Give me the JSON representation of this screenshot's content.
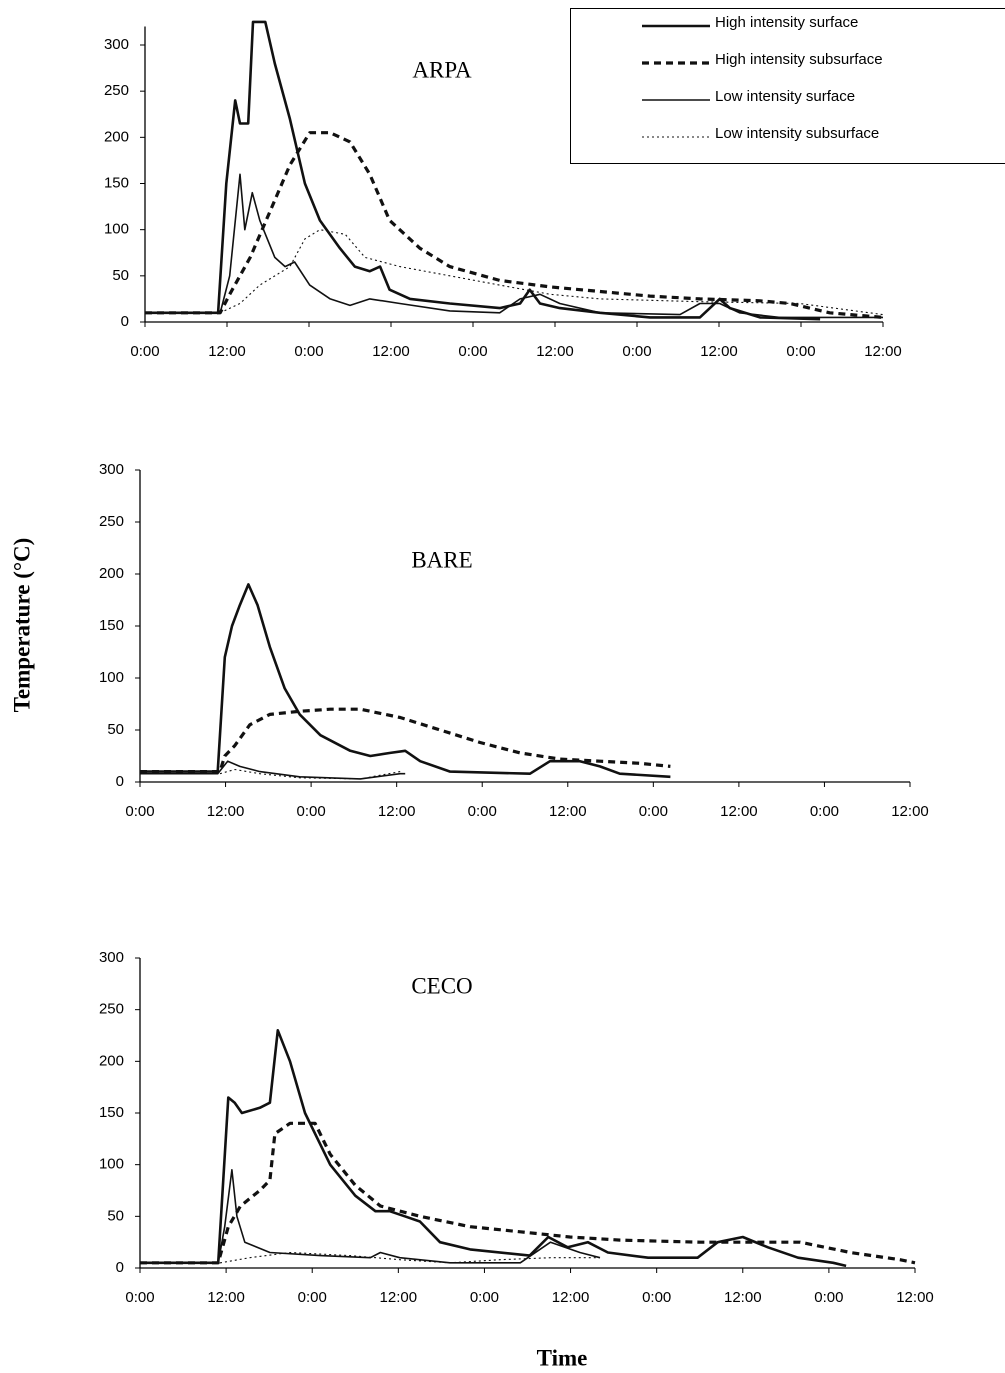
{
  "ylabel": "Temperature (°C)",
  "xlabel": "Time",
  "chart_data": [
    {
      "type": "line",
      "title": "ARPA",
      "legend": "upper right",
      "xlim": [
        0,
        108
      ],
      "ylim": [
        0,
        320
      ],
      "xticks": [
        {
          "value": 0,
          "label": "0:00"
        },
        {
          "value": 12,
          "label": "12:00"
        },
        {
          "value": 24,
          "label": "0:00"
        },
        {
          "value": 36,
          "label": "12:00"
        },
        {
          "value": 48,
          "label": "0:00"
        },
        {
          "value": 60,
          "label": "12:00"
        },
        {
          "value": 72,
          "label": "0:00"
        },
        {
          "value": 84,
          "label": "12:00"
        },
        {
          "value": 96,
          "label": "0:00"
        },
        {
          "value": 108,
          "label": "12:00"
        }
      ],
      "yticks": [
        0,
        50,
        100,
        150,
        200,
        250,
        300
      ],
      "series": [
        {
          "name": "High intensity surface",
          "style": "solid-thick",
          "x": [
            0,
            10.7,
            11.9,
            13.2,
            13.9,
            15.1,
            15.8,
            17.6,
            19.0,
            21.2,
            23.4,
            25.6,
            28.5,
            30.7,
            32.9,
            34.4,
            35.8,
            38.8,
            44.6,
            51.9,
            54.9,
            56.3,
            57.8,
            60.7,
            66.6,
            73.9,
            81.2,
            84.1,
            85.6,
            90.0,
            98.8
          ],
          "values": [
            10,
            10,
            150,
            240,
            215,
            215,
            325,
            325,
            280,
            220,
            150,
            110,
            80,
            60,
            55,
            60,
            35,
            25,
            20,
            15,
            20,
            35,
            20,
            15,
            10,
            5,
            5,
            25,
            15,
            5,
            3
          ]
        },
        {
          "name": "High intensity subsurface",
          "style": "dashed-thick",
          "x": [
            0,
            11.0,
            12.4,
            15.4,
            18.3,
            21.2,
            24.1,
            27.1,
            30.0,
            32.9,
            35.8,
            40.2,
            44.6,
            51.9,
            59.3,
            66.6,
            73.9,
            81.2,
            90.0,
            94.4,
            100.2,
            108
          ],
          "values": [
            10,
            10,
            30,
            70,
            120,
            170,
            205,
            205,
            195,
            160,
            110,
            80,
            60,
            45,
            38,
            33,
            28,
            25,
            23,
            20,
            10,
            5
          ]
        },
        {
          "name": "Low intensity surface",
          "style": "solid-thin",
          "x": [
            0,
            11.0,
            12.4,
            13.9,
            14.6,
            15.7,
            16.8,
            19.0,
            20.5,
            21.9,
            24.1,
            27.1,
            30.0,
            32.9,
            37.3,
            44.6,
            51.9,
            54.9,
            57.8,
            60.7,
            66.6,
            78.3,
            81.2,
            84.1,
            87.0,
            92.9,
            108
          ],
          "values": [
            10,
            10,
            50,
            160,
            100,
            140,
            110,
            70,
            60,
            65,
            40,
            25,
            18,
            25,
            20,
            12,
            10,
            25,
            30,
            20,
            10,
            8,
            20,
            20,
            10,
            5,
            5
          ]
        },
        {
          "name": "Low intensity subsurface",
          "style": "dotted-thin",
          "x": [
            0,
            11.0,
            13.9,
            16.8,
            21.2,
            23.4,
            25.6,
            29.3,
            32.2,
            37.3,
            44.6,
            51.9,
            59.3,
            66.6,
            81.2,
            95.8,
            108
          ],
          "values": [
            10,
            10,
            20,
            40,
            60,
            90,
            100,
            95,
            70,
            60,
            50,
            40,
            30,
            25,
            22,
            20,
            8
          ]
        }
      ]
    },
    {
      "type": "line",
      "title": "BARE",
      "xlim": [
        0,
        108
      ],
      "ylim": [
        0,
        300
      ],
      "xticks": [
        {
          "value": 0,
          "label": "0:00"
        },
        {
          "value": 12,
          "label": "12:00"
        },
        {
          "value": 24,
          "label": "0:00"
        },
        {
          "value": 36,
          "label": "12:00"
        },
        {
          "value": 48,
          "label": "0:00"
        },
        {
          "value": 60,
          "label": "12:00"
        },
        {
          "value": 72,
          "label": "0:00"
        },
        {
          "value": 84,
          "label": "12:00"
        },
        {
          "value": 96,
          "label": "0:00"
        },
        {
          "value": 108,
          "label": "12:00"
        }
      ],
      "yticks": [
        0,
        50,
        100,
        150,
        200,
        250,
        300
      ],
      "series": [
        {
          "style": "solid-thick",
          "x": [
            0,
            10.9,
            11.9,
            12.9,
            14.0,
            15.2,
            16.5,
            18.2,
            20.3,
            22.4,
            25.3,
            29.5,
            32.3,
            35.1,
            37.2,
            39.3,
            43.5,
            54.7,
            57.5,
            61.7,
            64.5,
            67.3,
            74.4
          ],
          "values": [
            10,
            10,
            120,
            150,
            170,
            190,
            170,
            130,
            90,
            65,
            45,
            30,
            25,
            28,
            30,
            20,
            10,
            8,
            20,
            20,
            15,
            8,
            5
          ]
        },
        {
          "style": "dashed-thick",
          "x": [
            0,
            11.2,
            11.9,
            13.3,
            15.4,
            18.2,
            22.4,
            26.7,
            30.9,
            36.5,
            42.1,
            47.7,
            53.3,
            58.9,
            64.5,
            70.1,
            74.4
          ],
          "values": [
            10,
            10,
            25,
            35,
            55,
            65,
            68,
            70,
            70,
            62,
            50,
            38,
            28,
            22,
            20,
            18,
            15
          ]
        },
        {
          "style": "solid-thin",
          "x": [
            0,
            10.9,
            12.3,
            14.0,
            16.8,
            22.4,
            30.9,
            36.5,
            37.2
          ],
          "values": [
            8,
            8,
            20,
            15,
            10,
            5,
            3,
            8,
            8
          ]
        },
        {
          "style": "dotted-thin",
          "x": [
            0,
            11.2,
            13.3,
            16.8,
            22.4,
            30.9,
            36.5
          ],
          "values": [
            8,
            8,
            12,
            8,
            4,
            3,
            10
          ]
        }
      ]
    },
    {
      "type": "line",
      "title": "CECO",
      "xlim": [
        0,
        108
      ],
      "ylim": [
        0,
        300
      ],
      "xticks": [
        {
          "value": 0,
          "label": "0:00"
        },
        {
          "value": 12,
          "label": "12:00"
        },
        {
          "value": 24,
          "label": "0:00"
        },
        {
          "value": 36,
          "label": "12:00"
        },
        {
          "value": 48,
          "label": "0:00"
        },
        {
          "value": 60,
          "label": "12:00"
        },
        {
          "value": 72,
          "label": "0:00"
        },
        {
          "value": 84,
          "label": "12:00"
        },
        {
          "value": 96,
          "label": "0:00"
        },
        {
          "value": 108,
          "label": "12:00"
        }
      ],
      "yticks": [
        0,
        50,
        100,
        150,
        200,
        250,
        300
      ],
      "series": [
        {
          "style": "solid-thick",
          "x": [
            0,
            10.9,
            12.3,
            13.2,
            14.2,
            16.7,
            18.1,
            19.2,
            20.9,
            23.0,
            26.5,
            30.0,
            32.8,
            34.8,
            36.9,
            39.0,
            41.8,
            46.0,
            54.3,
            56.9,
            59.6,
            62.4,
            65.2,
            70.8,
            77.7,
            80.5,
            84.0,
            87.5,
            91.7,
            96.6,
            98.4
          ],
          "values": [
            5,
            5,
            165,
            160,
            150,
            155,
            160,
            230,
            200,
            150,
            100,
            70,
            55,
            55,
            50,
            45,
            25,
            18,
            12,
            30,
            20,
            25,
            15,
            10,
            10,
            25,
            30,
            20,
            10,
            5,
            2
          ]
        },
        {
          "style": "dashed-thick",
          "x": [
            0,
            10.9,
            12.3,
            14.0,
            16.7,
            18.1,
            18.8,
            20.9,
            24.4,
            26.5,
            30.0,
            33.5,
            39.0,
            46.0,
            53.0,
            59.9,
            66.9,
            78.1,
            92.0,
            99.0,
            105.9,
            108
          ],
          "values": [
            5,
            5,
            40,
            60,
            75,
            85,
            130,
            140,
            140,
            110,
            80,
            60,
            50,
            40,
            35,
            30,
            27,
            25,
            25,
            15,
            8,
            5
          ]
        },
        {
          "style": "solid-thin",
          "x": [
            0,
            10.9,
            11.8,
            12.8,
            13.5,
            14.6,
            18.1,
            25.1,
            32.1,
            33.5,
            36.2,
            43.2,
            53.0,
            57.2,
            61.3,
            64.1
          ],
          "values": [
            5,
            5,
            40,
            95,
            50,
            25,
            15,
            12,
            10,
            15,
            10,
            5,
            5,
            25,
            15,
            10
          ]
        },
        {
          "style": "dotted-thin",
          "x": [
            0,
            11.2,
            15.3,
            20.9,
            29.3,
            36.2,
            43.2,
            50.2,
            57.2,
            64.1
          ],
          "values": [
            5,
            5,
            10,
            15,
            12,
            8,
            5,
            8,
            10,
            10
          ]
        }
      ]
    }
  ]
}
